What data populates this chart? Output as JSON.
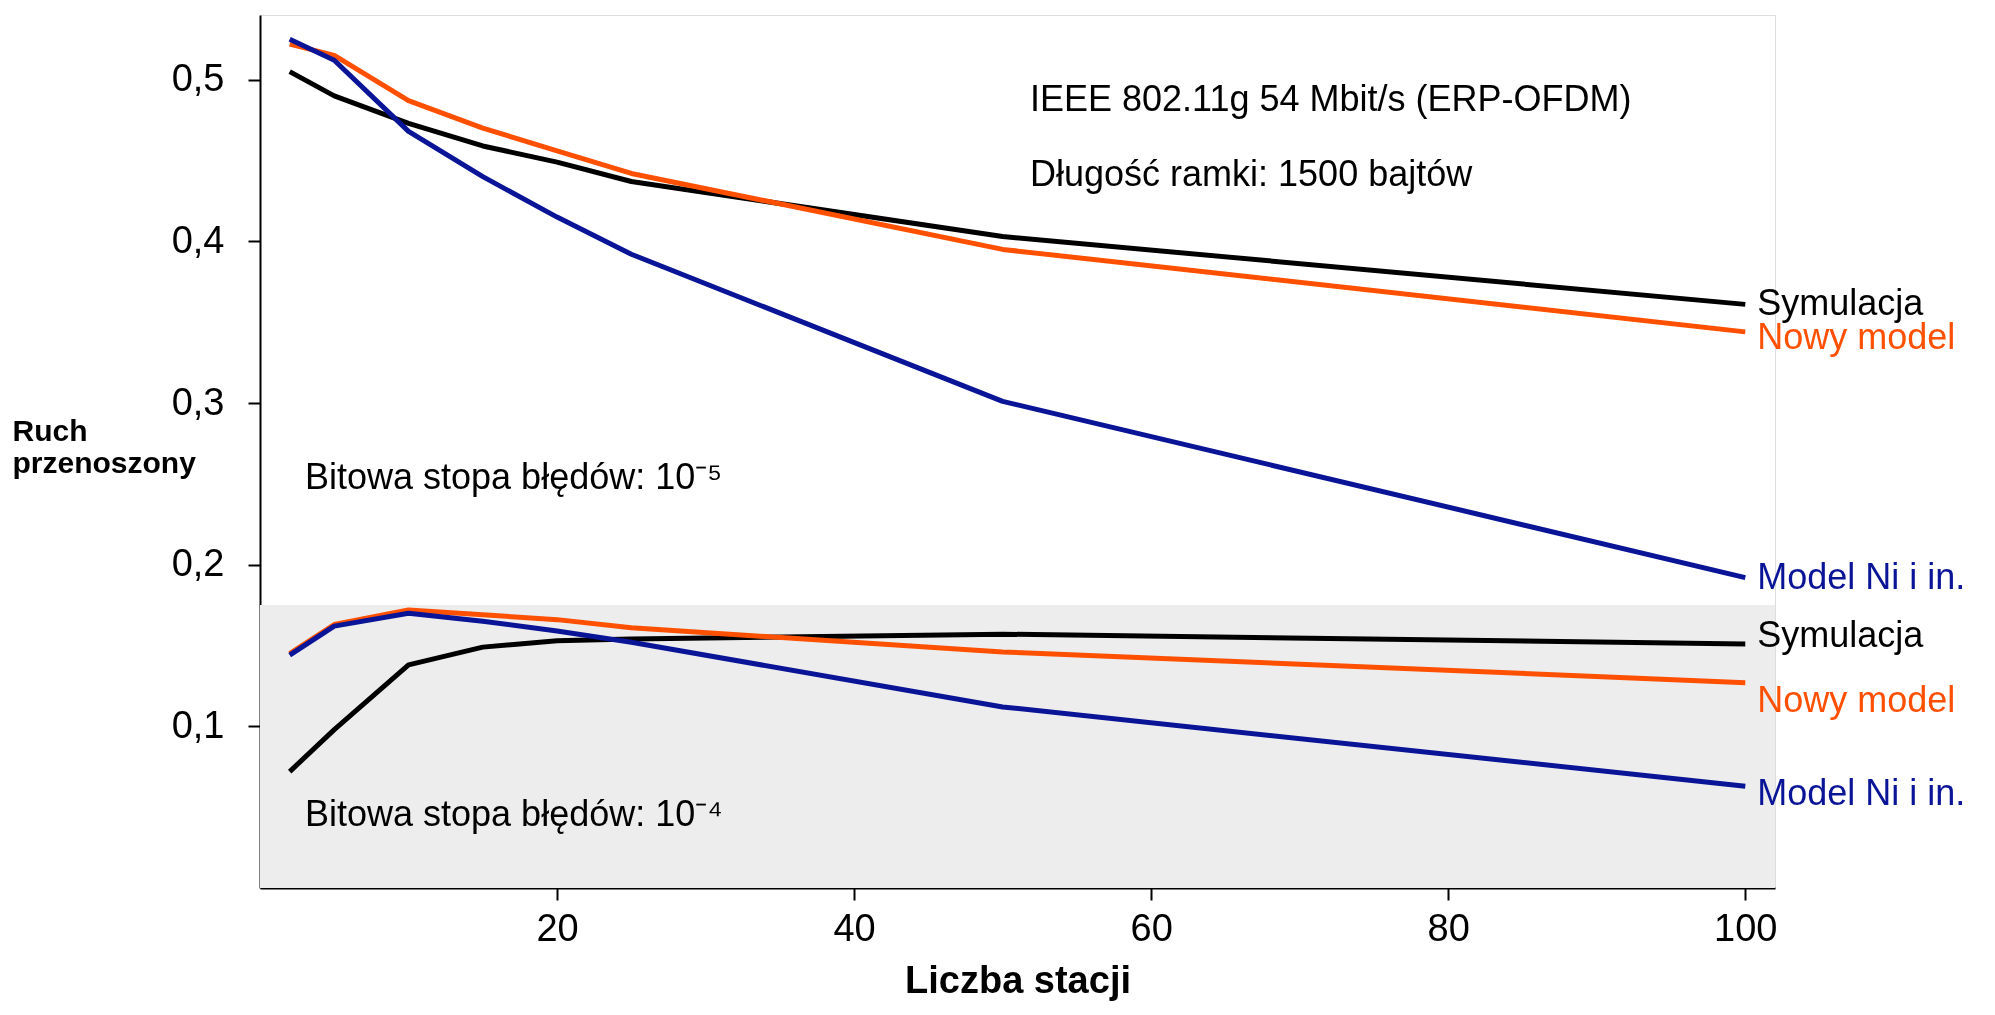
{
  "chart_data": {
    "type": "line",
    "xlabel": "Liczba stacji",
    "ylabel": "Ruch przenoszony",
    "annotations": [
      "IEEE 802.11g 54 Mbit/s (ERP-OFDM)",
      "Długość ramki: 1500 bajtów",
      "Bitowa stopa błędów: 10⁻⁵",
      "Bitowa stopa błędów: 10⁻⁴"
    ],
    "x": [
      2,
      5,
      10,
      15,
      20,
      25,
      50,
      100
    ],
    "series": [
      {
        "name": "Symulacja",
        "color": "#000000",
        "values": [
          0.505,
          0.49,
          0.473,
          0.459,
          0.449,
          0.437,
          0.403,
          0.361
        ]
      },
      {
        "name": "Nowy model",
        "color": "#ff5000",
        "values": [
          0.522,
          0.515,
          0.487,
          0.47,
          0.456,
          0.442,
          0.395,
          0.344
        ]
      },
      {
        "name": "Model Ni i in.",
        "color": "#0a1496",
        "values": [
          0.525,
          0.512,
          0.468,
          0.44,
          0.415,
          0.392,
          0.301,
          0.192
        ]
      },
      {
        "name": "Symulacja",
        "color": "#000000",
        "values": [
          0.072,
          0.098,
          0.138,
          0.149,
          0.153,
          0.154,
          0.157,
          0.151
        ]
      },
      {
        "name": "Nowy model",
        "color": "#ff5000",
        "values": [
          0.145,
          0.163,
          0.172,
          0.169,
          0.166,
          0.161,
          0.146,
          0.127
        ]
      },
      {
        "name": "Model Ni i in.",
        "color": "#0a1496",
        "values": [
          0.144,
          0.162,
          0.17,
          0.165,
          0.159,
          0.152,
          0.112,
          0.063
        ]
      }
    ],
    "bands": [
      {
        "axis": "y",
        "from": 0,
        "to": 0.175,
        "color": "#ededed"
      }
    ],
    "xlim": [
      0,
      102
    ],
    "ylim": [
      0,
      0.54
    ],
    "xticks": [
      20,
      40,
      60,
      80,
      100
    ],
    "yticks": [
      {
        "value": 0.1,
        "label": "0,1"
      },
      {
        "value": 0.2,
        "label": "0,2"
      },
      {
        "value": 0.3,
        "label": "0,3"
      },
      {
        "value": 0.4,
        "label": "0,4"
      },
      {
        "value": 0.5,
        "label": "0,5"
      }
    ],
    "legend": false,
    "grid": false,
    "line_style": "solid",
    "marker": "none"
  }
}
